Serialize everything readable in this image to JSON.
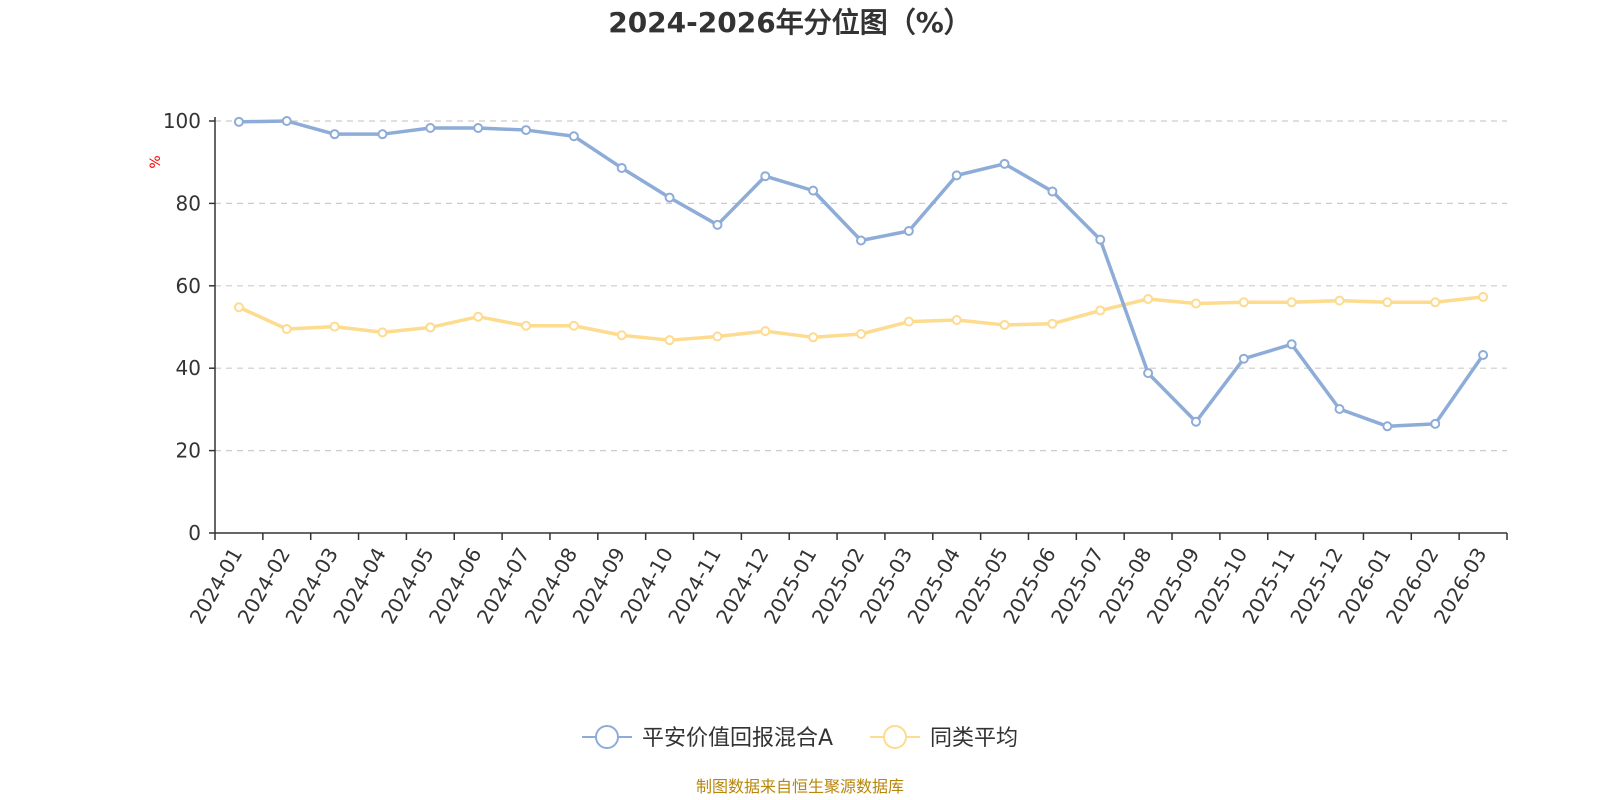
{
  "chart_data": {
    "type": "line",
    "title": "2024-2026年分位图（%）",
    "ylabel": "%",
    "xlabel": "",
    "ylim": [
      0,
      100
    ],
    "yticks": [
      0,
      20,
      40,
      60,
      80,
      100
    ],
    "grid": true,
    "legend_position": "bottom",
    "categories": [
      "2024-01",
      "2024-02",
      "2024-03",
      "2024-04",
      "2024-05",
      "2024-06",
      "2024-07",
      "2024-08",
      "2024-09",
      "2024-10",
      "2024-11",
      "2024-12",
      "2025-01",
      "2025-02",
      "2025-03",
      "2025-04",
      "2025-05",
      "2025-06",
      "2025-07",
      "2025-08",
      "2025-09",
      "2025-10",
      "2025-11",
      "2025-12",
      "2026-01",
      "2026-02",
      "2026-03"
    ],
    "series": [
      {
        "name": "平安价值回报混合A",
        "color": "#8eacd8",
        "values": [
          99.8,
          100,
          96.8,
          96.8,
          98.3,
          98.3,
          97.8,
          96.3,
          88.6,
          81.4,
          74.8,
          86.6,
          83.1,
          71.0,
          73.3,
          86.8,
          89.6,
          82.9,
          71.2,
          38.8,
          27.0,
          42.3,
          45.8,
          30.1,
          25.9,
          26.5,
          43.2
        ]
      },
      {
        "name": "同类平均",
        "color": "#fddb8f",
        "values": [
          54.8,
          49.5,
          50.1,
          48.7,
          49.9,
          52.5,
          50.3,
          50.3,
          48.0,
          46.8,
          47.7,
          49.0,
          47.5,
          48.3,
          51.3,
          51.7,
          50.5,
          50.8,
          54.0,
          56.8,
          55.7,
          56.0,
          56.0,
          56.4,
          56.0,
          56.0,
          57.3
        ]
      }
    ]
  },
  "source": "制图数据来自恒生聚源数据库",
  "colors": {
    "axis": "#333333",
    "grid": "#cccccc",
    "unit": "#ff0000",
    "source": "#b8860b"
  }
}
